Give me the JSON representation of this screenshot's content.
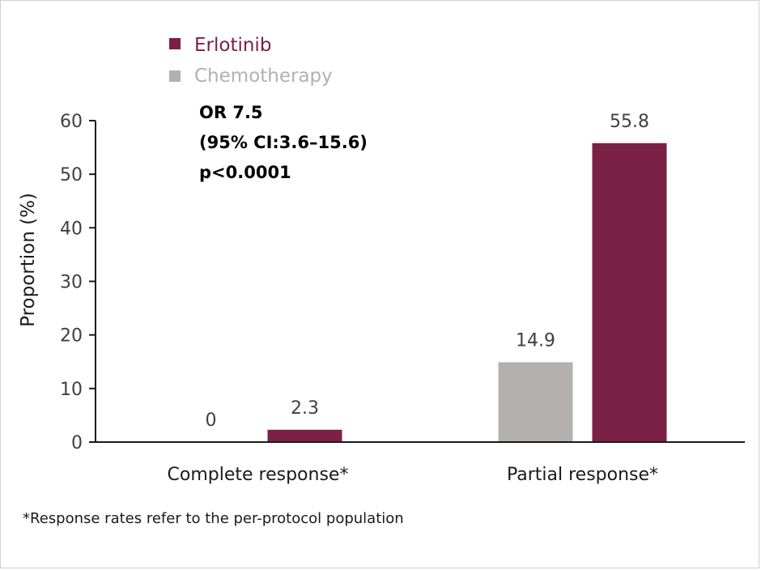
{
  "chart_data": {
    "type": "bar",
    "categories": [
      "Complete response*",
      "Partial response*"
    ],
    "series": [
      {
        "name": "Chemotherapy",
        "color": "#b4b0b0",
        "values": [
          0,
          14.9
        ],
        "labels": [
          "0",
          "14.9"
        ]
      },
      {
        "name": "Erlotinib",
        "color": "#7b2146",
        "values": [
          2.3,
          55.8
        ],
        "labels": [
          "2.3",
          "55.8"
        ]
      }
    ],
    "legend": [
      {
        "name": "Erlotinib",
        "color": "#7b2146"
      },
      {
        "name": "Chemotherapy",
        "color": "#b4b0b0"
      }
    ],
    "legend_position": "top-left",
    "ylabel": "Proportion (%)",
    "ylim": [
      0,
      60
    ],
    "yticks": [
      "0",
      "10",
      "20",
      "30",
      "40",
      "50",
      "60"
    ],
    "grid": false,
    "annotation": [
      "OR 7.5",
      "(95% CI:3.6–15.6)",
      "p<0.0001"
    ],
    "footnote": "*Response rates refer to the per-protocol population"
  }
}
